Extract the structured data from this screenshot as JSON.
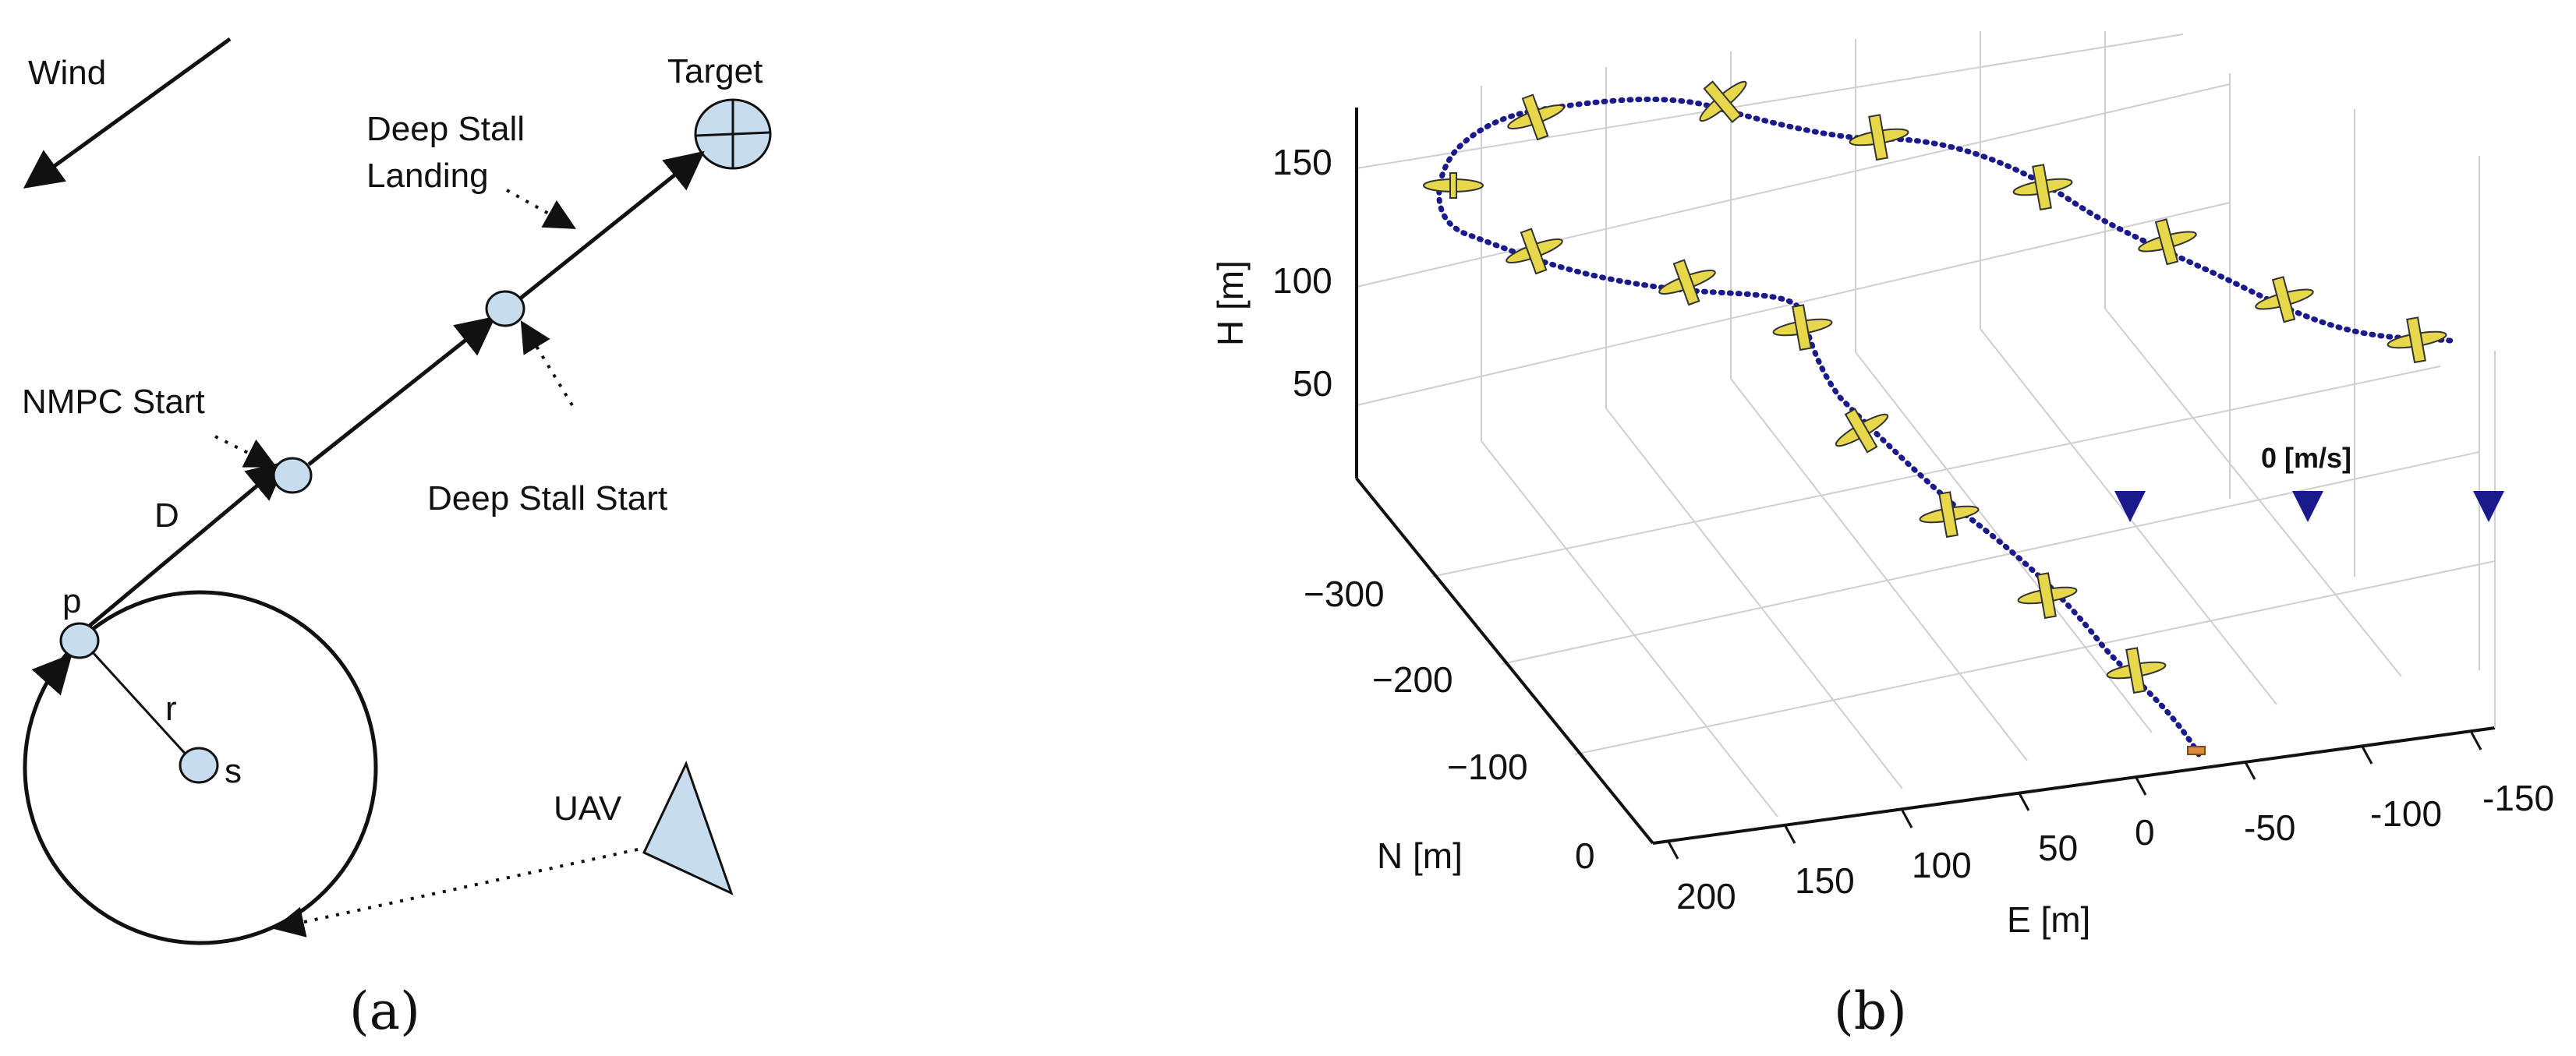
{
  "panel_a": {
    "wind_label": "Wind",
    "target_label": "Target",
    "deep_stall_landing_label": "Deep Stall\nLanding",
    "nmpc_start_label": "NMPC Start",
    "deep_stall_start_label": "Deep Stall Start",
    "d_label": "D",
    "p_label": "p",
    "r_label": "r",
    "s_label": "s",
    "uav_label": "UAV",
    "caption": "(a)"
  },
  "panel_b": {
    "caption": "(b)",
    "wind_value_label": "0 [m/s]",
    "colors": {
      "trajectory": "#1a1a8c",
      "aircraft": "#e6d84a",
      "wind_arrow": "#1a1a8c"
    }
  },
  "chart_data": {
    "type": "line",
    "xlabel": "E [m]",
    "ylabel": "N [m]",
    "zlabel": "H [m]",
    "x_ticks": [
      "200",
      "150",
      "100",
      "50",
      "0",
      "-50",
      "-100",
      "-150"
    ],
    "y_ticks": [
      "0",
      "−100",
      "−200",
      "−300"
    ],
    "z_ticks": [
      "50",
      "100",
      "150"
    ],
    "xlim": [
      -175,
      225
    ],
    "ylim": [
      0,
      -350
    ],
    "zlim": [
      0,
      180
    ],
    "grid": true
  }
}
